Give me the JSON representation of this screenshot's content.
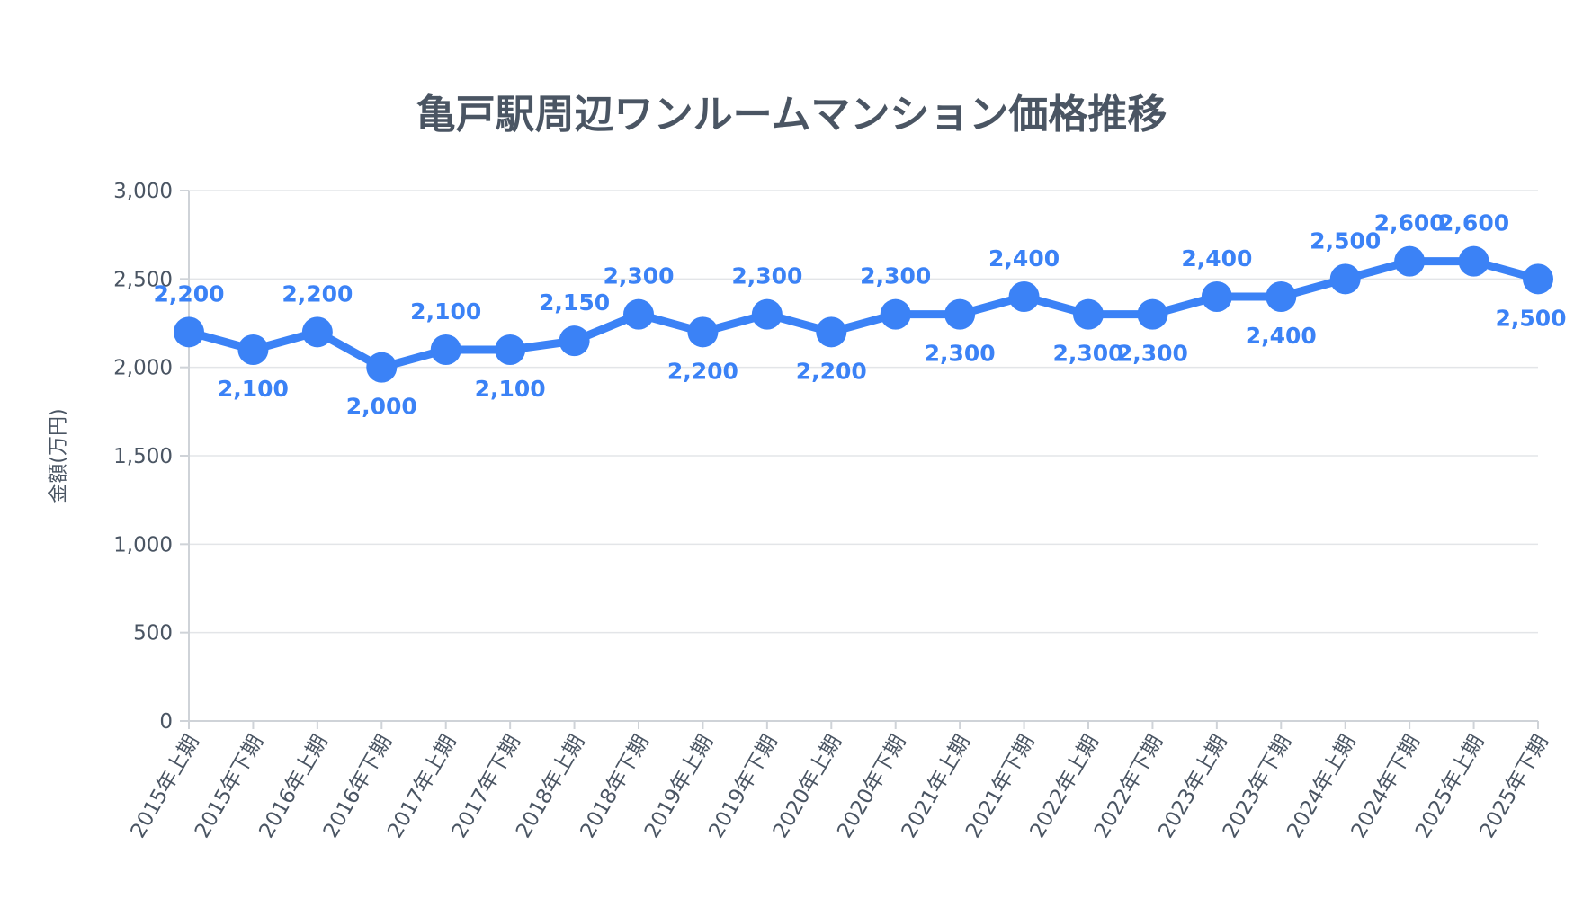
{
  "chart_data": {
    "type": "line",
    "title": "亀戸駅周辺ワンルームマンション価格推移",
    "ylabel": "金額(万円)",
    "xlabel": "",
    "ylim": [
      0,
      3000
    ],
    "yticks": [
      0,
      500,
      1000,
      1500,
      2000,
      2500,
      3000
    ],
    "ytick_labels": [
      "0",
      "500",
      "1,000",
      "1,500",
      "2,000",
      "2,500",
      "3,000"
    ],
    "grid": true,
    "legend": "none",
    "categories": [
      "2015年上期",
      "2015年下期",
      "2016年上期",
      "2016年下期",
      "2017年上期",
      "2017年下期",
      "2018年上期",
      "2018年下期",
      "2019年上期",
      "2019年下期",
      "2020年上期",
      "2020年下期",
      "2021年上期",
      "2021年下期",
      "2022年上期",
      "2022年下期",
      "2023年上期",
      "2023年下期",
      "2024年上期",
      "2024年下期",
      "2025年上期",
      "2025年下期"
    ],
    "series": [
      {
        "values": [
          2200,
          2100,
          2200,
          2000,
          2100,
          2100,
          2150,
          2300,
          2200,
          2300,
          2200,
          2300,
          2300,
          2400,
          2300,
          2300,
          2400,
          2400,
          2500,
          2600,
          2600,
          2500
        ],
        "labels": [
          "2,200",
          "2,100",
          "2,200",
          "2,000",
          "2,100",
          "2,100",
          "2,150",
          "2,300",
          "2,200",
          "2,300",
          "2,200",
          "2,300",
          "2,300",
          "2,400",
          "2,300",
          "2,300",
          "2,400",
          "2,400",
          "2,500",
          "2,600",
          "2,600",
          "2,500"
        ],
        "color": "#3b82f6"
      }
    ]
  }
}
